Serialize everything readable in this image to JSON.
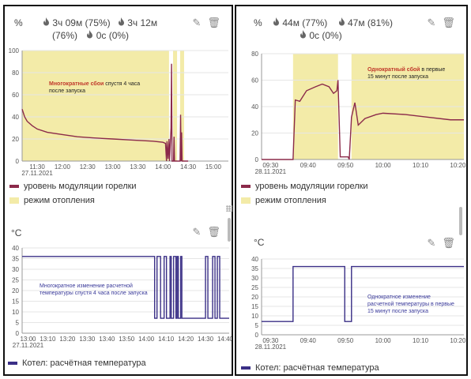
{
  "left": {
    "top_card": {
      "unit": "%",
      "stats": {
        "s1": "3ч 09м (75%)",
        "s2": "3ч 12м",
        "s3": "(76%)",
        "s4": "0с (0%)"
      },
      "annotation_line1_red": "Многократные сбои",
      "annotation_line1_rest": " спустя 4 часа",
      "annotation_line2": "после запуска",
      "legend": {
        "series": "уровень модуляции горелки",
        "mode": "режим отопления"
      }
    },
    "bottom_card": {
      "unit": "°C",
      "annotation_line1": "Многократное изменение расчетной",
      "annotation_line2": "температуры спустя 4 часа после запуска",
      "legend": {
        "series": "Котел: расчётная температура"
      }
    }
  },
  "right": {
    "top_card": {
      "unit": "%",
      "stats": {
        "s1": "44м (77%)",
        "s2": "47м (81%)",
        "s3": "0с (0%)"
      },
      "annotation_line1_red": "Однократный сбой",
      "annotation_line1_rest": " в первые",
      "annotation_line2": "15 минут после запуска",
      "legend": {
        "series": "уровень модуляции горелки",
        "mode": "режим отопления"
      }
    },
    "bottom_card": {
      "unit": "°C",
      "annotation_line1": "Однократное изменение",
      "annotation_line2": "расчетной температуры в первые",
      "annotation_line3": "15 минут после запуска",
      "legend": {
        "series": "Котел: расчётная температура"
      }
    }
  },
  "colors": {
    "modulation": "#8b2a4a",
    "heating": "#f3eba8",
    "setpoint": "#3a2f86",
    "annotation_red": "#c0392b",
    "annotation_blue": "#3a3a9a"
  },
  "icons": {
    "flame": "flame-icon",
    "edit": "pencil-icon",
    "delete": "trash-icon"
  },
  "chart_data": [
    {
      "id": "left-modulation",
      "type": "line",
      "ylim": [
        0,
        100
      ],
      "yticks": [
        0,
        20,
        40,
        60,
        80,
        100
      ],
      "xlim": [
        11.2,
        15.3
      ],
      "xticks": [
        {
          "v": 11.5,
          "label": "11:30",
          "sub": "27.11.2021"
        },
        {
          "v": 12.0,
          "label": "12:00"
        },
        {
          "v": 12.5,
          "label": "12:30"
        },
        {
          "v": 13.0,
          "label": "13:00"
        },
        {
          "v": 13.5,
          "label": "13:30"
        },
        {
          "v": 14.0,
          "label": "14:00"
        },
        {
          "v": 14.5,
          "label": "14:30"
        },
        {
          "v": 15.0,
          "label": "15:00"
        }
      ],
      "bands": [
        [
          11.2,
          14.12
        ],
        [
          14.2,
          14.28
        ],
        [
          14.34,
          14.42
        ]
      ],
      "x": [
        11.2,
        11.25,
        11.3,
        11.4,
        11.5,
        11.7,
        12.0,
        12.3,
        12.6,
        13.0,
        13.4,
        13.8,
        14.0,
        14.05,
        14.07,
        14.08,
        14.1,
        14.12,
        14.13,
        14.16,
        14.17,
        14.18,
        14.2,
        14.21,
        14.22,
        14.23,
        14.24,
        14.25,
        14.3,
        14.34,
        14.35,
        14.36,
        14.37,
        14.38,
        14.39,
        14.42,
        14.43,
        14.5
      ],
      "y": [
        47,
        40,
        36,
        32,
        29,
        26,
        24,
        22,
        21,
        20,
        19,
        18,
        17,
        16,
        0,
        18,
        2,
        20,
        0,
        30,
        88,
        0,
        0,
        0,
        22,
        0,
        0,
        0,
        0,
        0,
        42,
        0,
        26,
        0,
        0,
        0,
        0,
        0
      ]
    },
    {
      "id": "right-modulation",
      "type": "line",
      "ylim": [
        0,
        80
      ],
      "yticks": [
        0,
        20,
        40,
        60,
        80
      ],
      "xlim": [
        9.46,
        10.36
      ],
      "xticks": [
        {
          "v": 9.6667,
          "label": "09:40"
        },
        {
          "v": 9.8333,
          "label": "09:50"
        },
        {
          "v": 10.0,
          "label": "10:00"
        },
        {
          "v": 10.1667,
          "label": "10:10"
        },
        {
          "v": 10.3333,
          "label": "10:20"
        }
      ],
      "first_tick_label": {
        "v": 9.5,
        "label": "09:30",
        "sub": "28.11.2021"
      },
      "bands": [
        [
          9.6,
          9.8,
          "a"
        ],
        [
          9.86,
          10.36
        ]
      ],
      "x": [
        9.46,
        9.58,
        9.6,
        9.61,
        9.63,
        9.66,
        9.7,
        9.73,
        9.76,
        9.78,
        9.795,
        9.8,
        9.81,
        9.845,
        9.85,
        9.86,
        9.875,
        9.89,
        9.92,
        9.97,
        10.0,
        10.1,
        10.2,
        10.3,
        10.36
      ],
      "y": [
        0,
        0,
        0,
        45,
        44,
        52,
        55,
        57,
        55,
        50,
        52,
        60,
        2,
        2,
        0,
        32,
        43,
        26,
        31,
        34,
        35,
        34,
        32,
        30,
        30
      ]
    },
    {
      "id": "left-setpoint",
      "type": "line",
      "step": true,
      "ylim": [
        0,
        40
      ],
      "yticks": [
        0,
        5,
        10,
        15,
        20,
        25,
        30,
        35,
        40
      ],
      "xlim": [
        12.95,
        14.7
      ],
      "xticks": [
        {
          "v": 13.0,
          "label": "13:00",
          "sub": "27.11.2021"
        },
        {
          "v": 13.1667,
          "label": "13:10"
        },
        {
          "v": 13.3333,
          "label": "13:20"
        },
        {
          "v": 13.5,
          "label": "13:30"
        },
        {
          "v": 13.6667,
          "label": "13:40"
        },
        {
          "v": 13.8333,
          "label": "13:50"
        },
        {
          "v": 14.0,
          "label": "14:00"
        },
        {
          "v": 14.1667,
          "label": "14:10"
        },
        {
          "v": 14.3333,
          "label": "14:20"
        },
        {
          "v": 14.5,
          "label": "14:30"
        },
        {
          "v": 14.6667,
          "label": "14:40"
        }
      ],
      "x": [
        12.95,
        14.07,
        14.09,
        14.12,
        14.15,
        14.17,
        14.2,
        14.21,
        14.23,
        14.25,
        14.26,
        14.27,
        14.29,
        14.3,
        14.33,
        14.5,
        14.52,
        14.56,
        14.58,
        14.6,
        14.62,
        14.65,
        14.7
      ],
      "y": [
        36,
        7,
        36,
        7,
        36,
        7,
        36,
        7,
        36,
        7,
        36,
        7,
        36,
        7,
        7,
        36,
        7,
        36,
        7,
        36,
        7,
        7,
        7
      ]
    },
    {
      "id": "right-setpoint",
      "type": "line",
      "step": true,
      "ylim": [
        0,
        40
      ],
      "yticks": [
        0,
        5,
        10,
        15,
        20,
        25,
        30,
        35,
        40
      ],
      "xlim": [
        9.46,
        10.36
      ],
      "xticks": [
        {
          "v": 9.6667,
          "label": "09:40"
        },
        {
          "v": 9.8333,
          "label": "09:50"
        },
        {
          "v": 10.0,
          "label": "10:00"
        },
        {
          "v": 10.1667,
          "label": "10:10"
        },
        {
          "v": 10.3333,
          "label": "10:20"
        }
      ],
      "first_tick_label": {
        "v": 9.5,
        "label": "09:30",
        "sub": "28.11.2021"
      },
      "x": [
        9.46,
        9.6,
        9.83,
        9.86,
        10.36
      ],
      "y": [
        7,
        36,
        7,
        36,
        36
      ]
    }
  ]
}
